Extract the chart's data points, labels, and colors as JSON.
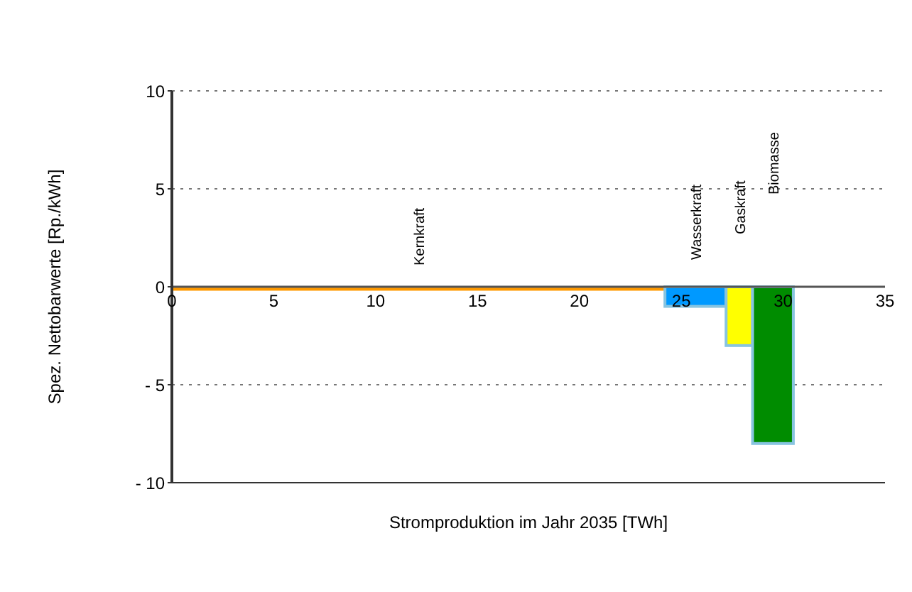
{
  "chart_data": {
    "type": "histogram",
    "xlabel": "Stromproduktion im Jahr 2035 [TWh]",
    "ylabel": "Spez. Nettobarwerte [Rp./kWh]",
    "bins": [
      0,
      24.2,
      27.2,
      28.5,
      30.5
    ],
    "values": [
      -0.2,
      -1,
      -3,
      -8
    ],
    "colors": [
      "#ff9900",
      "#0099ff",
      "#ffff00",
      "#008c00"
    ],
    "xlim": [
      0,
      35
    ],
    "xticks": [
      0,
      5,
      10,
      15,
      20,
      25,
      30,
      35
    ],
    "ylim": [
      -10,
      10
    ],
    "yticks": [
      {
        "value": -10,
        "label": "- 10"
      },
      {
        "value": -5,
        "label": "- 5"
      },
      0,
      5,
      10
    ],
    "grid": "y",
    "annotations": [
      "Kernkraft",
      "Wasserkraft",
      "Gaskraft",
      "Biomasse"
    ]
  }
}
